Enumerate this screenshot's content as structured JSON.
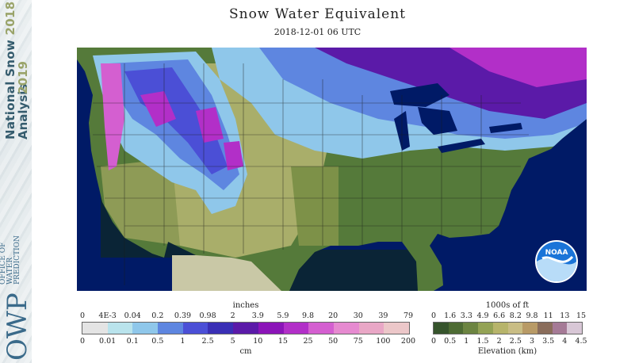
{
  "header": {
    "title": "Snow Water Equivalent",
    "timestamp": "2018-12-01 06 UTC"
  },
  "sidebar": {
    "product_title": "National Snow",
    "product_subtitle": "Analysis",
    "season_start": "2018",
    "season_end": "2019",
    "org_abbrev": "OWP",
    "org_line1": "OFFICE OF",
    "org_line2": "WATER",
    "org_line3": "PREDICTION"
  },
  "logo": {
    "name": "NOAA"
  },
  "swe_legend": {
    "top_unit": "inches",
    "top_ticks": [
      "0",
      "4E-3",
      "0.04",
      "0.2",
      "0.39",
      "0.98",
      "2",
      "3.9",
      "5.9",
      "9.8",
      "20",
      "30",
      "39",
      "79"
    ],
    "bottom_unit": "cm",
    "bottom_ticks": [
      "0",
      "0.01",
      "0.1",
      "0.5",
      "1",
      "2.5",
      "5",
      "10",
      "15",
      "25",
      "50",
      "75",
      "100",
      "200"
    ],
    "colors": [
      "#e4e4e4",
      "#b9e3ec",
      "#8fc7ea",
      "#5e86e0",
      "#4b4fd6",
      "#3a2fb5",
      "#5b1aa8",
      "#8b14b8",
      "#b22fc8",
      "#d45fd0",
      "#e68ad0",
      "#e9a7c6",
      "#ecc7c9"
    ]
  },
  "elevation_legend": {
    "top_unit": "1000s of ft",
    "top_ticks": [
      "0",
      "1.6",
      "3.3",
      "4.9",
      "6.6",
      "8.2",
      "9.8",
      "11",
      "13",
      "15"
    ],
    "bottom_label": "Elevation (km)",
    "bottom_ticks": [
      "0",
      "0.5",
      "1",
      "1.5",
      "2",
      "2.5",
      "3",
      "3.5",
      "4",
      "4.5"
    ],
    "colors": [
      "#36542c",
      "#4d6b33",
      "#6c8441",
      "#93a255",
      "#b7b46b",
      "#c9bd85",
      "#b89a66",
      "#8a6d5b",
      "#a57a96",
      "#d8c7d6"
    ]
  }
}
